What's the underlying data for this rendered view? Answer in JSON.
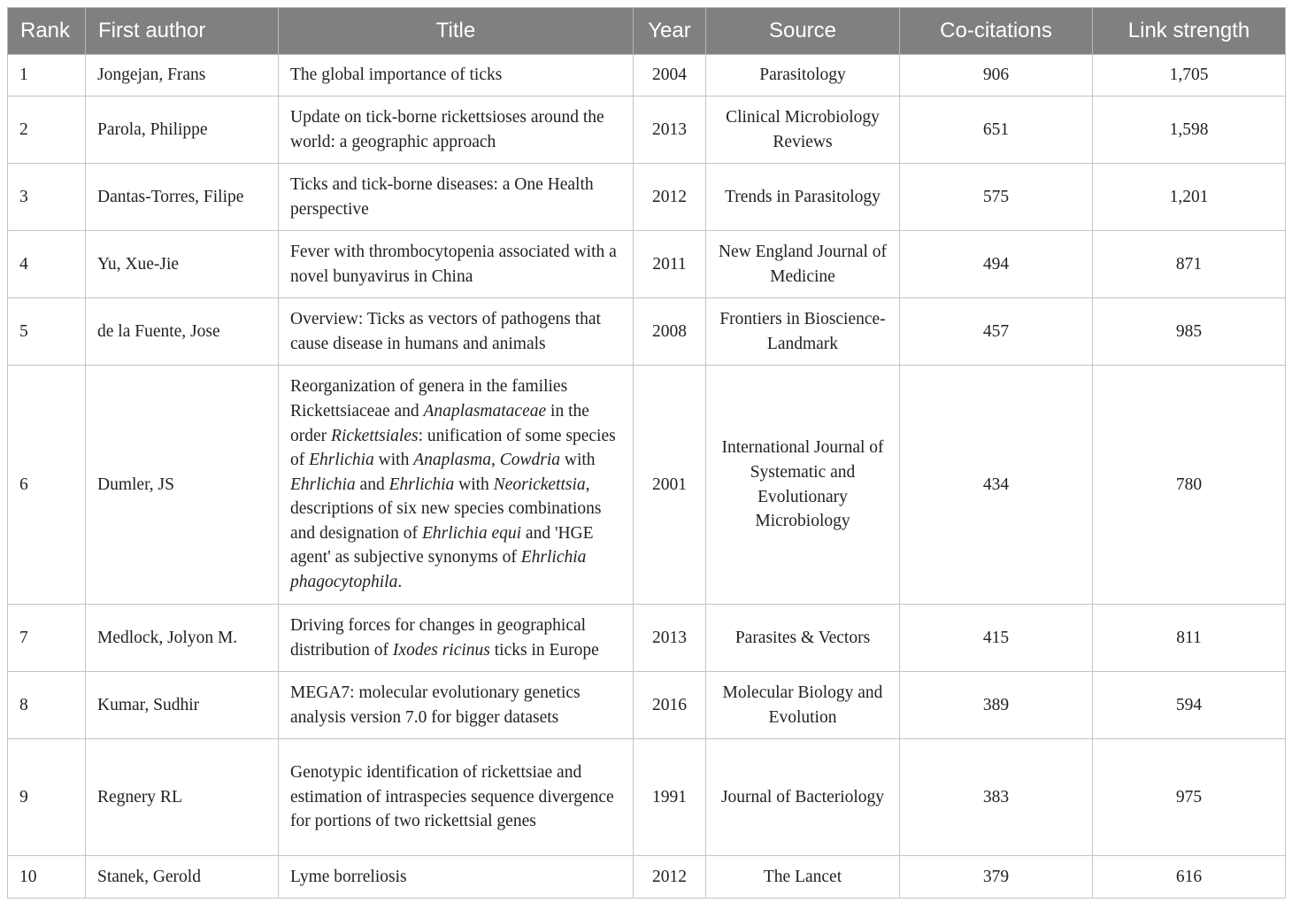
{
  "table": {
    "columns": [
      "Rank",
      "First author",
      "Title",
      "Year",
      "Source",
      "Co-citations",
      "Link strength"
    ],
    "rows": [
      [
        "1",
        "Jongejan, Frans",
        [
          "The global importance of ticks"
        ],
        "2004",
        "Parasitology",
        "906",
        "1,705"
      ],
      [
        "2",
        "Parola, Philippe",
        [
          "Update on tick-borne rickettsioses around the world: a geographic approach"
        ],
        "2013",
        "Clinical Microbiology Reviews",
        "651",
        "1,598"
      ],
      [
        "3",
        "Dantas-Torres, Filipe",
        [
          "Ticks and tick-borne diseases: a One Health perspective"
        ],
        "2012",
        "Trends in Parasitology",
        "575",
        "1,201"
      ],
      [
        "4",
        "Yu, Xue-Jie",
        [
          "Fever with thrombocytopenia associated with a novel bunyavirus in China"
        ],
        "2011",
        "New England Journal of Medicine",
        "494",
        "871"
      ],
      [
        "5",
        "de la Fuente, Jose",
        [
          "Overview: Ticks as vectors of pathogens that cause disease in humans and animals"
        ],
        "2008",
        "Frontiers in Bioscience-Landmark",
        "457",
        "985"
      ],
      [
        "6",
        "Dumler, JS",
        [
          "Reorganization of genera in the families Rickettsiaceae and ",
          {
            "text": "Anaplasmataceae",
            "italic": true
          },
          " in the order ",
          {
            "text": "Rickettsiales",
            "italic": true
          },
          ": unification of some species of ",
          {
            "text": "Ehrlichia",
            "italic": true
          },
          " with ",
          {
            "text": "Anaplasma",
            "italic": true
          },
          ", ",
          {
            "text": "Cowdria",
            "italic": true
          },
          " with ",
          {
            "text": "Ehrlichia",
            "italic": true
          },
          " and ",
          {
            "text": "Ehrlichia",
            "italic": true
          },
          " with ",
          {
            "text": "Neorickettsia",
            "italic": true
          },
          ", descriptions of six new species combinations and designation of ",
          {
            "text": "Ehrlichia equi",
            "italic": true
          },
          " and 'HGE agent' as subjective synonyms of ",
          {
            "text": "Ehrlichia phagocytophila",
            "italic": true
          },
          "."
        ],
        "2001",
        "International Journal of Systematic and Evolutionary Microbiology",
        "434",
        "780"
      ],
      [
        "7",
        "Medlock, Jolyon M.",
        [
          "Driving forces for changes in geographical distribution of ",
          {
            "text": "Ixodes ricinus",
            "italic": true
          },
          " ticks in Europe"
        ],
        "2013",
        "Parasites & Vectors",
        "415",
        "811"
      ],
      [
        "8",
        "Kumar, Sudhir",
        [
          "MEGA7: molecular evolutionary genetics analysis version 7.0 for bigger datasets"
        ],
        "2016",
        "Molecular Biology and Evolution",
        "389",
        "594"
      ],
      [
        "9",
        "Regnery RL",
        [
          "Genotypic identification of rickettsiae and estimation of intraspecies sequence divergence for portions of two rickettsial genes"
        ],
        "1991",
        "Journal of Bacteriology",
        "383",
        "975"
      ],
      [
        "10",
        "Stanek, Gerold",
        [
          "Lyme borreliosis"
        ],
        "2012",
        "The Lancet",
        "379",
        "616"
      ]
    ]
  }
}
